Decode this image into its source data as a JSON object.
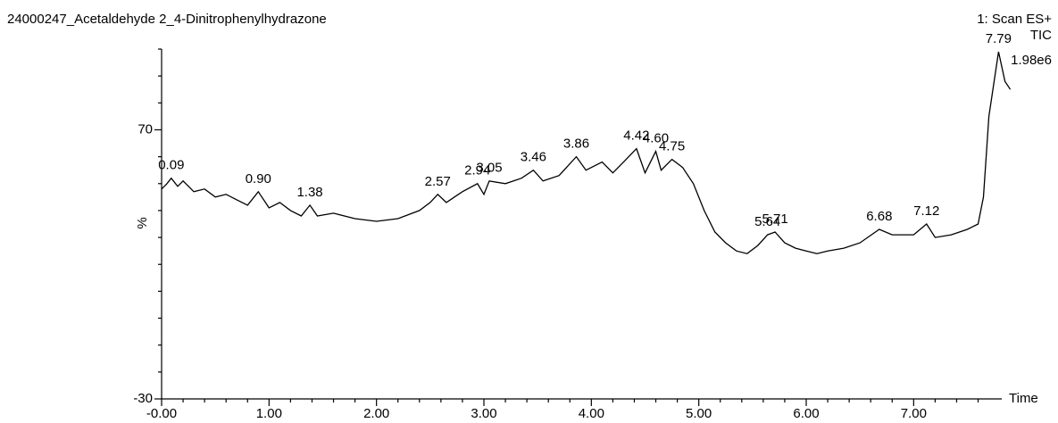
{
  "chart_data": {
    "type": "line",
    "title": "24000247_Acetaldehyde 2_4-Dinitrophenylhydrazone",
    "scan": "1: Scan ES+",
    "trace": "TIC",
    "intensity": "1.98e6",
    "ylabel": "%",
    "xlabel": "Time",
    "xlim": [
      0,
      7.82
    ],
    "ylim": [
      -30,
      100
    ],
    "xticks": [
      {
        "value": 0,
        "label": "-0.00"
      },
      {
        "value": 1,
        "label": "1.00"
      },
      {
        "value": 2,
        "label": "2.00"
      },
      {
        "value": 3,
        "label": "3.00"
      },
      {
        "value": 4,
        "label": "4.00"
      },
      {
        "value": 5,
        "label": "5.00"
      },
      {
        "value": 6,
        "label": "6.00"
      },
      {
        "value": 7,
        "label": "7.00"
      }
    ],
    "yticks": [
      -30,
      70
    ],
    "xminorticks": [
      0.2,
      0.4,
      0.6,
      0.8,
      1.2,
      1.4,
      1.6,
      1.8,
      2.2,
      2.4,
      2.6,
      2.8,
      3.2,
      3.4,
      3.6,
      3.8,
      4.2,
      4.4,
      4.6,
      4.8,
      5.2,
      5.4,
      5.6,
      5.8,
      6.2,
      6.4,
      6.6,
      6.8,
      7.2,
      7.4,
      7.6
    ],
    "yminorticks": [
      -20,
      -10,
      0,
      10,
      20,
      30,
      40,
      50,
      60,
      80,
      90,
      100
    ],
    "color": "#000000",
    "x": [
      0.0,
      0.05,
      0.09,
      0.15,
      0.2,
      0.3,
      0.4,
      0.5,
      0.6,
      0.7,
      0.8,
      0.9,
      1.0,
      1.1,
      1.2,
      1.3,
      1.38,
      1.45,
      1.6,
      1.8,
      2.0,
      2.2,
      2.4,
      2.5,
      2.57,
      2.65,
      2.8,
      2.94,
      3.0,
      3.05,
      3.2,
      3.35,
      3.46,
      3.55,
      3.7,
      3.86,
      3.95,
      4.1,
      4.2,
      4.3,
      4.42,
      4.5,
      4.6,
      4.65,
      4.75,
      4.85,
      4.95,
      5.05,
      5.15,
      5.25,
      5.35,
      5.45,
      5.55,
      5.64,
      5.71,
      5.8,
      5.9,
      6.0,
      6.1,
      6.2,
      6.35,
      6.5,
      6.68,
      6.8,
      7.0,
      7.12,
      7.2,
      7.35,
      7.5,
      7.6,
      7.65,
      7.7,
      7.79,
      7.85,
      7.9
    ],
    "x_labels": [
      null,
      null,
      "0.09",
      null,
      null,
      null,
      null,
      null,
      null,
      null,
      null,
      "0.90",
      null,
      null,
      null,
      null,
      "1.38",
      null,
      null,
      null,
      null,
      null,
      null,
      null,
      "2.57",
      null,
      null,
      "2.94",
      null,
      "3.05",
      null,
      null,
      "3.46",
      null,
      null,
      "3.86",
      null,
      null,
      null,
      null,
      "4.42",
      null,
      "4.60",
      null,
      "4.75",
      null,
      null,
      null,
      null,
      null,
      null,
      null,
      null,
      "5.64",
      "5.71",
      null,
      null,
      null,
      null,
      null,
      null,
      null,
      "6.68",
      null,
      null,
      "7.12",
      null,
      null,
      null,
      null,
      null,
      null,
      "7.79",
      null,
      null
    ],
    "values": [
      48,
      50,
      52,
      49,
      51,
      47,
      48,
      45,
      46,
      44,
      42,
      47,
      41,
      43,
      40,
      38,
      42,
      38,
      39,
      37,
      36,
      37,
      40,
      43,
      46,
      43,
      47,
      50,
      46,
      51,
      50,
      52,
      55,
      51,
      53,
      60,
      55,
      58,
      54,
      58,
      63,
      54,
      62,
      55,
      59,
      56,
      50,
      40,
      32,
      28,
      25,
      24,
      27,
      31,
      32,
      28,
      26,
      25,
      24,
      25,
      26,
      28,
      33,
      31,
      31,
      35,
      30,
      31,
      33,
      35,
      45,
      75,
      99,
      88,
      85
    ]
  }
}
